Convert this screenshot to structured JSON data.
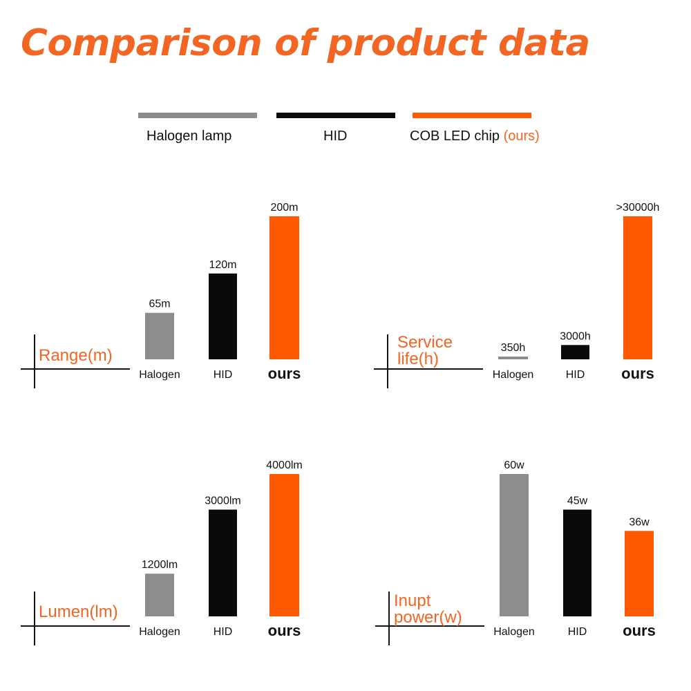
{
  "page": {
    "title": "Comparison of product data"
  },
  "legend": {
    "items": [
      {
        "label": "Halogen lamp",
        "accent": "",
        "color": "#8c8c8c"
      },
      {
        "label": "HID",
        "accent": "",
        "color": "#0a0a0a"
      },
      {
        "label": "COB LED chip ",
        "accent": "(ours)",
        "color": "#ff5a00"
      }
    ]
  },
  "colors": {
    "halogen": "#8c8c8c",
    "hid": "#0a0a0a",
    "ours": "#ff5a00",
    "accent": "#f26522"
  },
  "chart_data": [
    {
      "type": "bar",
      "ylabel": "Range(m)",
      "categories": [
        "Halogen",
        "HID",
        "ours"
      ],
      "values": [
        65,
        120,
        200
      ],
      "value_labels": [
        "65m",
        "120m",
        "200m"
      ],
      "ylim": [
        0,
        200
      ]
    },
    {
      "type": "bar",
      "ylabel": "Service life(h)",
      "categories": [
        "Halogen",
        "HID",
        "ours"
      ],
      "values": [
        350,
        3000,
        30000
      ],
      "value_labels": [
        "350h",
        "3000h",
        ">30000h"
      ],
      "ylim": [
        0,
        30000
      ]
    },
    {
      "type": "bar",
      "ylabel": "Lumen(lm)",
      "categories": [
        "Halogen",
        "HID",
        "ours"
      ],
      "values": [
        1200,
        3000,
        4000
      ],
      "value_labels": [
        "1200lm",
        "3000lm",
        "4000lm"
      ],
      "ylim": [
        0,
        4000
      ]
    },
    {
      "type": "bar",
      "ylabel": "Inupt power(w)",
      "categories": [
        "Halogen",
        "HID",
        "ours"
      ],
      "values": [
        60,
        45,
        36
      ],
      "value_labels": [
        "60w",
        "45w",
        "36w"
      ],
      "ylim": [
        0,
        60
      ]
    }
  ]
}
